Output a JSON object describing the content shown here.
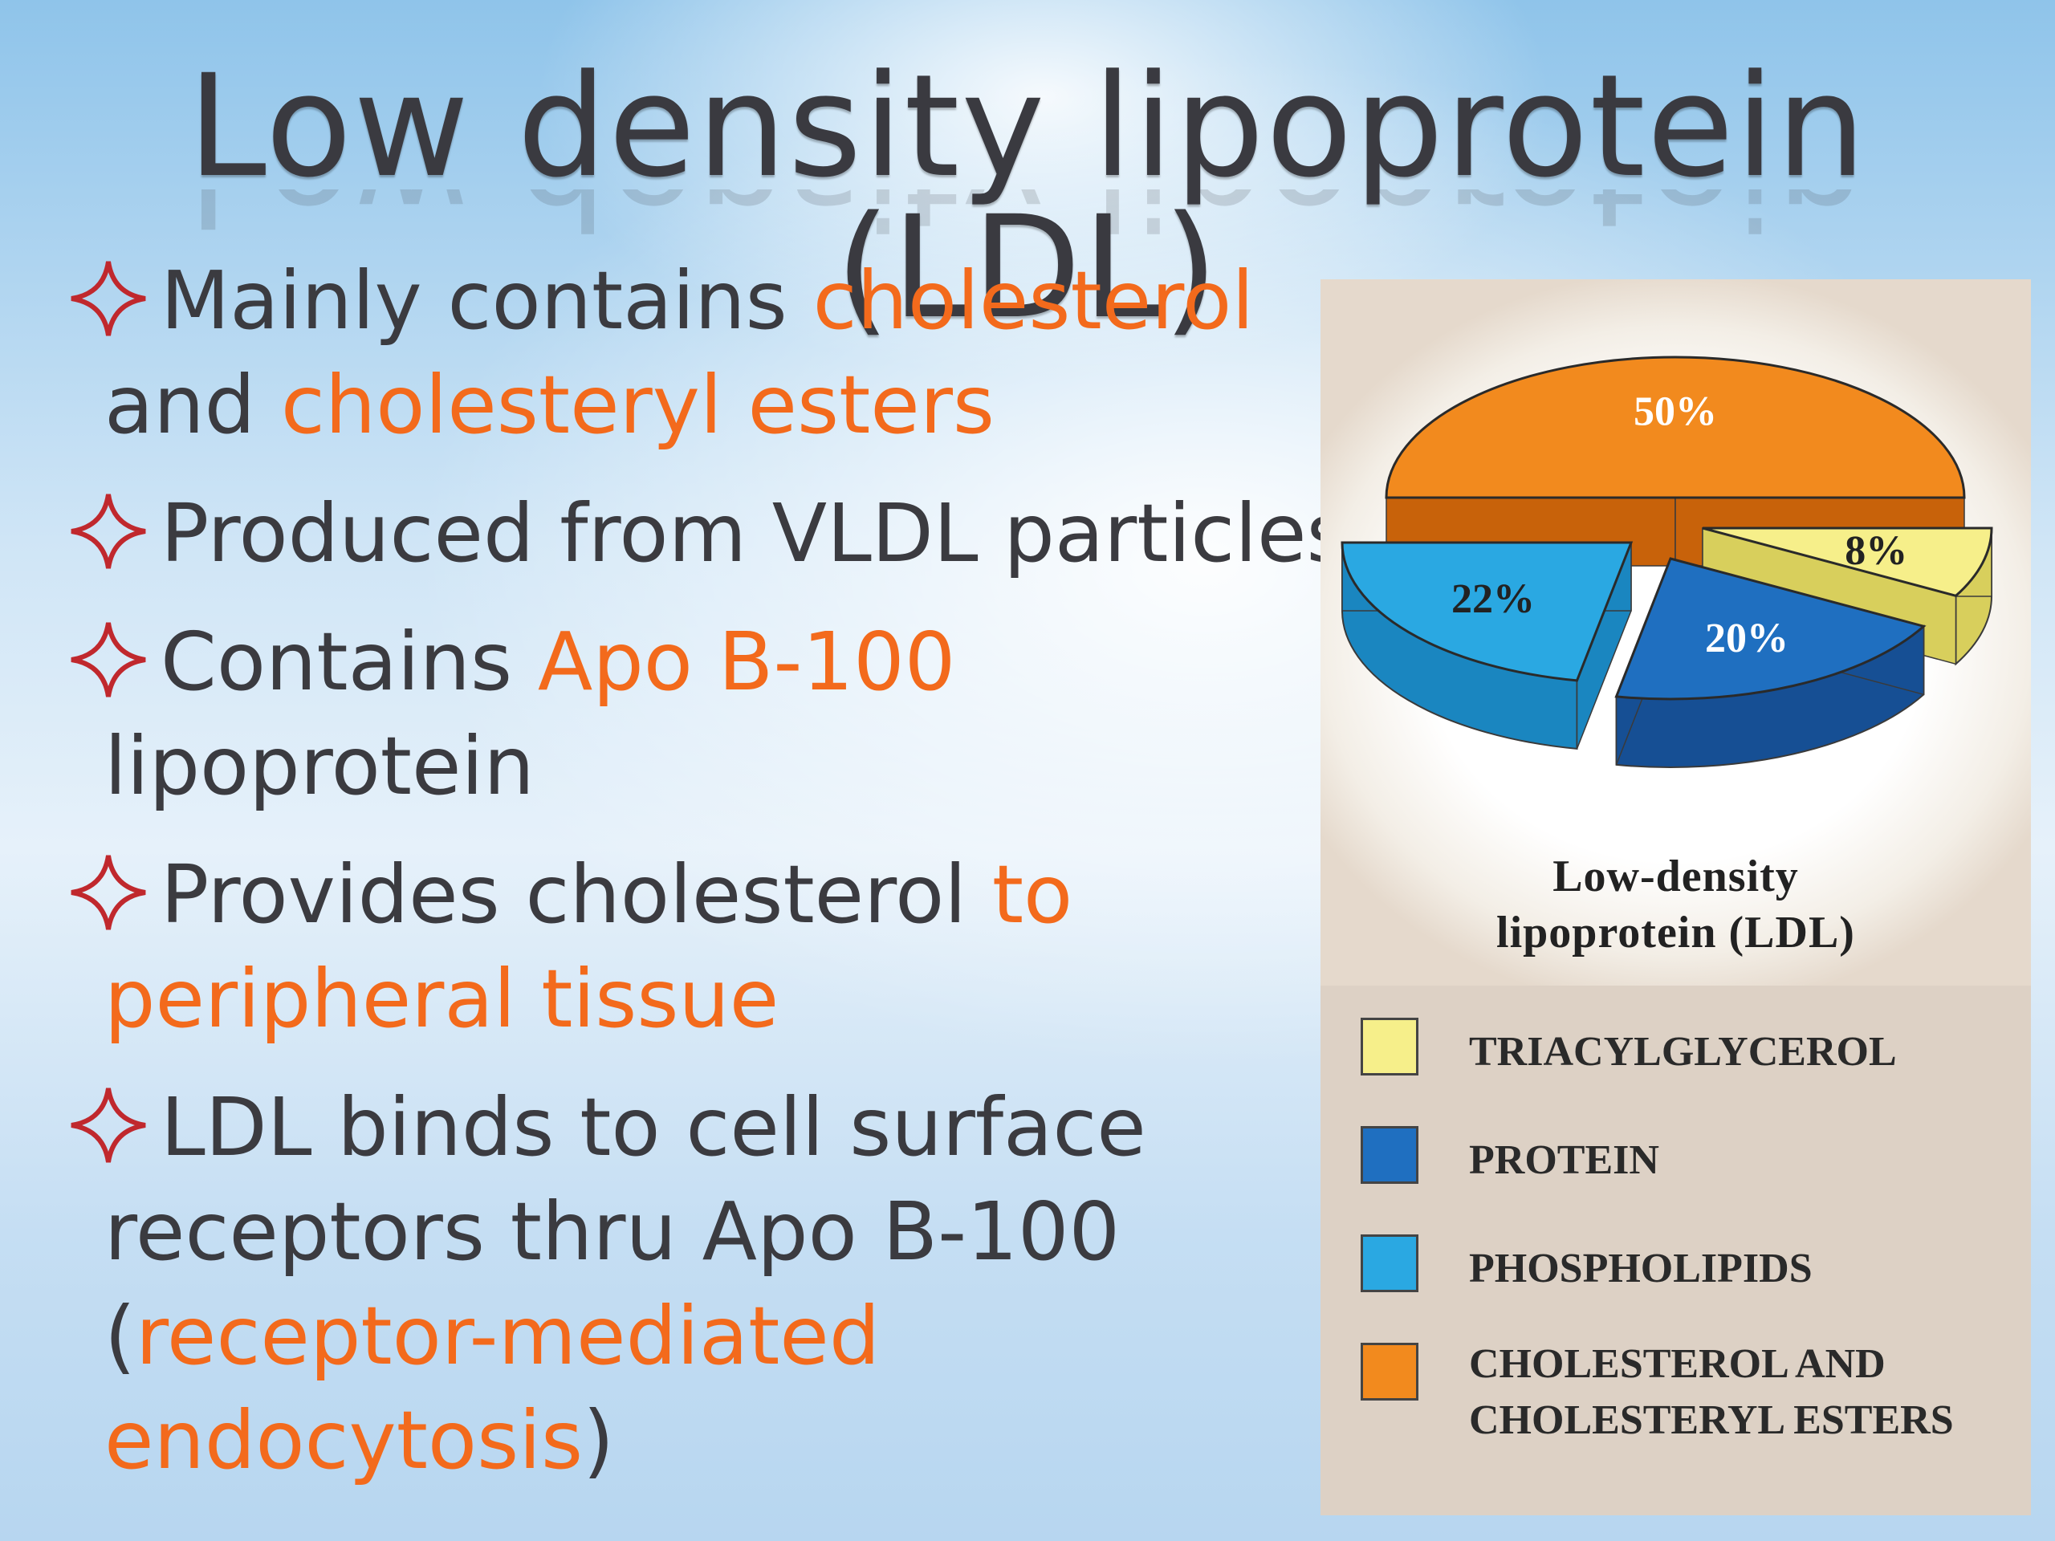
{
  "slide": {
    "title": "Low density lipoprotein (LDL)",
    "bullets": [
      [
        [
          {
            "t": "Mainly contains ",
            "h": false
          },
          {
            "t": "cholesterol",
            "h": true
          }
        ],
        [
          {
            "t": "and ",
            "h": false
          },
          {
            "t": "cholesteryl esters",
            "h": true
          }
        ]
      ],
      [
        [
          {
            "t": "Produced from VLDL particles",
            "h": false
          }
        ]
      ],
      [
        [
          {
            "t": "Contains ",
            "h": false
          },
          {
            "t": "Apo B-100",
            "h": true
          }
        ],
        [
          {
            "t": "lipoprotein",
            "h": false
          }
        ]
      ],
      [
        [
          {
            "t": "Provides cholesterol ",
            "h": false
          },
          {
            "t": "to",
            "h": true
          }
        ],
        [
          {
            "t": "peripheral tissue",
            "h": true
          }
        ]
      ],
      [
        [
          {
            "t": "LDL binds to cell surface",
            "h": false
          }
        ],
        [
          {
            "t": "receptors thru Apo B-100",
            "h": false
          }
        ],
        [
          {
            "t": "(",
            "h": false
          },
          {
            "t": "receptor-mediated",
            "h": true
          }
        ],
        [
          {
            "t": "endocytosis",
            "h": true
          },
          {
            "t": ")",
            "h": false
          }
        ]
      ]
    ],
    "bullet_icon": "four-point-star-outline-icon",
    "colors": {
      "text": "#3b3b40",
      "highlight": "#f36a1c",
      "star": "#c0282d"
    }
  },
  "chart_data": {
    "type": "pie",
    "style": "3d-exploded",
    "title": "Low-density lipoprotein (LDL)",
    "title_lines": [
      "Low-density",
      "lipoprotein (LDL)"
    ],
    "slices": [
      {
        "name": "CHOLESTEROL AND CHOLESTERYL ESTERS",
        "value": 50,
        "label": "50%",
        "color": "#f28a1e",
        "side": "#c8620a"
      },
      {
        "name": "TRIACYLGLYCEROL",
        "value": 8,
        "label": "8%",
        "color": "#f6ef8a",
        "side": "#d8cf5c"
      },
      {
        "name": "PROTEIN",
        "value": 20,
        "label": "20%",
        "color": "#1f6fc0",
        "side": "#164f94"
      },
      {
        "name": "PHOSPHOLIPIDS",
        "value": 22,
        "label": "22%",
        "color": "#2aa8e2",
        "side": "#1a86c0"
      }
    ],
    "legend": [
      {
        "label": "TRIACYLGLYCEROL",
        "color": "#f6ef8a"
      },
      {
        "label": "PROTEIN",
        "color": "#1f6fc0"
      },
      {
        "label": "PHOSPHOLIPIDS",
        "color": "#2aa8e2"
      },
      {
        "label_lines": [
          "CHOLESTEROL  AND",
          "CHOLESTERYL ESTERS"
        ],
        "color": "#f28a1e"
      }
    ],
    "legend_position": "bottom"
  }
}
